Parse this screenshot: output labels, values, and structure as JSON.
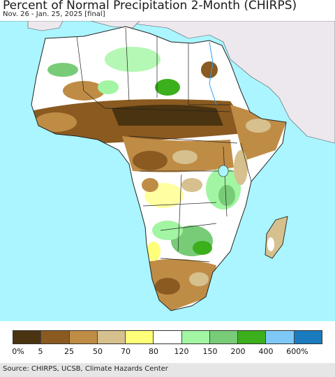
{
  "header": {
    "title": "Percent of Normal Precipitation 2-Month (CHIRPS)",
    "subtitle": "Nov. 26 - Jan. 25, 2025 [final]"
  },
  "legend": {
    "labels": [
      "0%",
      "5",
      "25",
      "50",
      "70",
      "80",
      "120",
      "150",
      "200",
      "400",
      "600%"
    ],
    "colors": [
      "#4a3310",
      "#8a5a20",
      "#bf8c46",
      "#d6c08e",
      "#ffff7a",
      "#ffffff",
      "#a2f5a2",
      "#78cc78",
      "#3caf1c",
      "#7ec8f8",
      "#1a7cbf"
    ]
  },
  "map": {
    "ocean_color": "#aaf5ff",
    "non_analysis_land_color": "#ece8ee"
  },
  "footer": {
    "source": "Source: CHIRPS, UCSB, Climate Hazards Center"
  }
}
